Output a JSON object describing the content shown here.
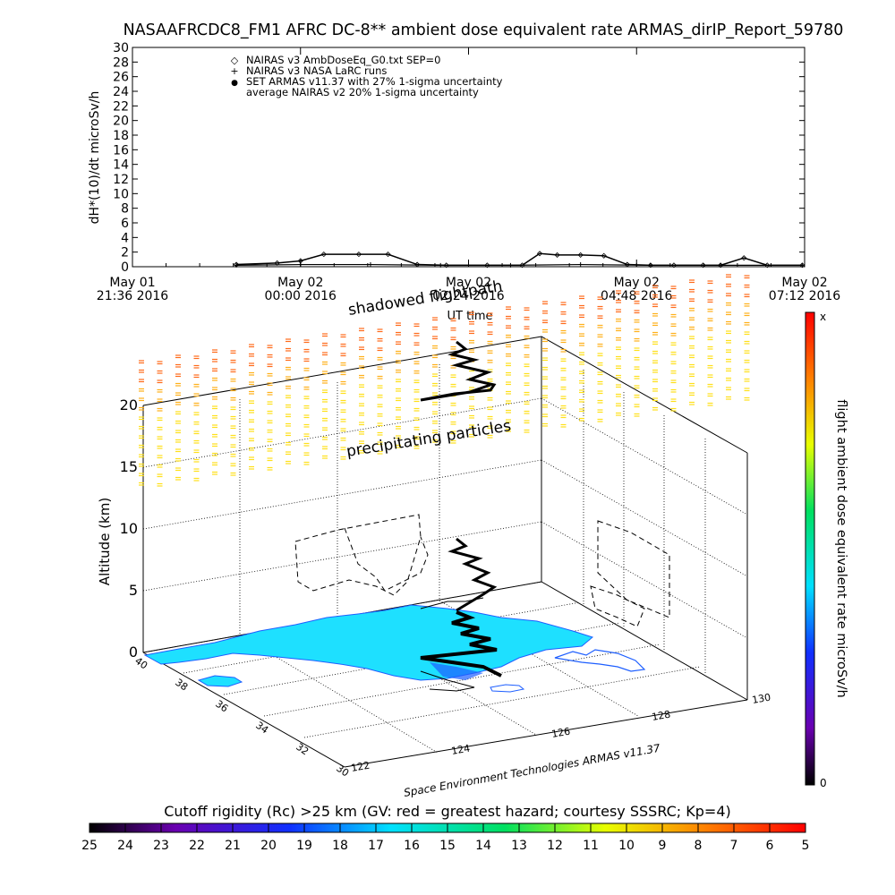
{
  "top_chart": {
    "title": "NASAAFRCDC8_FM1 AFRC DC-8** ambient dose equivalent rate ARMAS_dirIP_Report_59780",
    "ylabel": "dH*(10)/dt microSv/h",
    "xlabel": "UT time",
    "yticks": [
      "0",
      "2",
      "4",
      "6",
      "8",
      "10",
      "12",
      "14",
      "16",
      "18",
      "20",
      "22",
      "24",
      "26",
      "28",
      "30"
    ],
    "xticks": [
      {
        "line1": "May 01",
        "line2": "21:36 2016"
      },
      {
        "line1": "May 02",
        "line2": "00:00 2016"
      },
      {
        "line1": "May 02",
        "line2": "02:24 2016"
      },
      {
        "line1": "May 02",
        "line2": "04:48 2016"
      },
      {
        "line1": "May 02",
        "line2": "07:12 2016"
      }
    ],
    "legend": [
      {
        "symbol": "◇",
        "label": "NAIRAS v3 AmbDoseEq_G0.txt SEP=0"
      },
      {
        "symbol": "+",
        "label": "NAIRAS v3 NASA LaRC runs"
      },
      {
        "symbol": "●",
        "label": "SET ARMAS v11.37 with 27% 1-sigma uncertainty"
      },
      {
        "symbol": "",
        "label": "average NAIRAS v2 20% 1-sigma uncertainty"
      }
    ]
  },
  "chart_data": [
    {
      "type": "line",
      "title": "NASAAFRCDC8_FM1 AFRC DC-8** ambient dose equivalent rate ARMAS_dirIP_Report_59780",
      "xlabel": "UT time",
      "ylabel": "dH*(10)/dt microSv/h",
      "ylim": [
        0,
        30
      ],
      "xlim": [
        "May 01 21:36 2016",
        "May 02 07:12 2016"
      ],
      "grid": false,
      "legend_position": "top-left",
      "series": [
        {
          "name": "NAIRAS v3 AmbDoseEq_G0.txt SEP=0",
          "x": [
            "May 01 23:05",
            "May 01 23:40",
            "May 02 00:00",
            "May 02 00:20",
            "May 02 00:50",
            "May 02 01:15",
            "May 02 01:40",
            "May 02 02:05",
            "May 02 02:40",
            "May 02 03:10",
            "May 02 03:25",
            "May 02 03:40",
            "May 02 04:00",
            "May 02 04:20",
            "May 02 04:40",
            "May 02 05:00",
            "May 02 05:20",
            "May 02 05:45",
            "May 02 06:00",
            "May 02 06:20",
            "May 02 06:40",
            "May 02 07:10"
          ],
          "y": [
            0.3,
            0.5,
            0.8,
            1.7,
            1.7,
            1.7,
            0.3,
            0.2,
            0.2,
            0.2,
            1.8,
            1.6,
            1.6,
            1.5,
            0.3,
            0.2,
            0.2,
            0.2,
            0.2,
            1.2,
            0.2,
            0.2
          ]
        },
        {
          "name": "NAIRAS v3 NASA LaRC runs",
          "x": [
            "May 01 23:05",
            "May 02 00:00",
            "May 02 01:00",
            "May 02 02:00",
            "May 02 03:00",
            "May 02 04:00",
            "May 02 05:00",
            "May 02 06:00",
            "May 02 07:10"
          ],
          "y": [
            0.2,
            0.3,
            0.3,
            0.2,
            0.2,
            0.3,
            0.2,
            0.2,
            0.2
          ]
        }
      ]
    },
    {
      "type": "scatter",
      "title": "",
      "xlabel": "",
      "ylabel": "Altitude (km)",
      "zlim": [
        0,
        20
      ],
      "lat_ticks": [
        "40",
        "38",
        "36",
        "34",
        "32",
        "30"
      ],
      "lon_ticks": [
        "122",
        "124",
        "126",
        "128",
        "130"
      ],
      "alt_ticks": [
        "0",
        "5",
        "10",
        "15",
        "20"
      ],
      "colorbar_range": [
        0,
        "x"
      ],
      "colorbar_label": "flight ambient dose equivalent rate microSv/h"
    },
    {
      "type": "heatmap",
      "title": "Cutoff rigidity (Rc) >25 km (GV: red = greatest hazard; courtesy SSSRC; Kp=4)",
      "ticks": [
        "25",
        "24",
        "23",
        "22",
        "21",
        "20",
        "19",
        "18",
        "17",
        "16",
        "15",
        "14",
        "13",
        "12",
        "11",
        "10",
        "9",
        "8",
        "7",
        "6",
        "5"
      ]
    }
  ],
  "three_d": {
    "ylabel": "Altitude (km)",
    "z_ticks": [
      "0",
      "5",
      "10",
      "15",
      "20"
    ],
    "lat_ticks": [
      "40",
      "38",
      "36",
      "34",
      "32",
      "30"
    ],
    "lon_ticks": [
      "122",
      "124",
      "126",
      "128",
      "130"
    ],
    "label_shadowed": "shadowed flightpath",
    "label_precip": "precipitating particles",
    "label_credit": "Space Environment Technologies ARMAS v11.37"
  },
  "right_colorbar": {
    "label": "flight ambient dose equivalent rate microSv/h",
    "top_label": "x",
    "bottom_label": "0"
  },
  "bottom_colorbar": {
    "title": "Cutoff rigidity (Rc) >25 km (GV: red = greatest hazard; courtesy SSSRC; Kp=4)",
    "ticks": [
      "25",
      "24",
      "23",
      "22",
      "21",
      "20",
      "19",
      "18",
      "17",
      "16",
      "15",
      "14",
      "13",
      "12",
      "11",
      "10",
      "9",
      "8",
      "7",
      "6",
      "5"
    ]
  },
  "colors": {
    "land": "#1ee0ff",
    "coast": "#1e5fff",
    "precip_high": "#ff6a1a",
    "precip_mid": "#ffb01a",
    "precip_low": "#ffe01a"
  }
}
